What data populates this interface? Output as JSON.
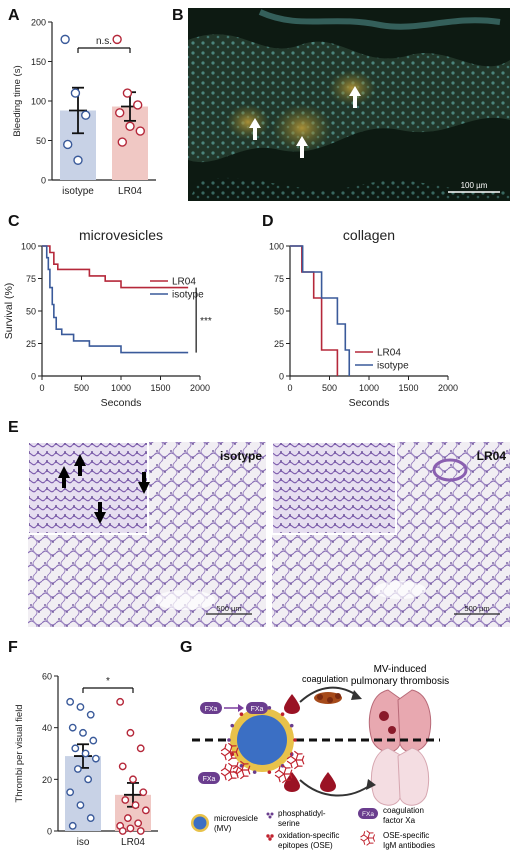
{
  "panels": {
    "A": "A",
    "B": "B",
    "C": "C",
    "D": "D",
    "E": "E",
    "F": "F",
    "G": "G"
  },
  "panelA": {
    "ylabel": "Bleeding time (s)",
    "ns": "n.s.",
    "categories": [
      "isotype",
      "LR04"
    ]
  },
  "panelB": {
    "scale": "100 µm"
  },
  "panelE": {
    "iso": "isotype",
    "lr": "LR04",
    "scale1": "500 µm",
    "scale2": "500 µm"
  },
  "panelF": {
    "ylabel": "Thrombi per visual field",
    "star": "*",
    "categories": [
      "iso",
      "LR04"
    ]
  },
  "panelG": {
    "title1": "MV-induced",
    "title2": "pulmonary thrombosis",
    "coag": "coagulation",
    "fxa": "FXa",
    "leg_mv1": "microvesicle",
    "leg_mv2": "(MV)",
    "leg_ps1": "phosphatidyl-",
    "leg_ps2": "serine",
    "leg_ose1": "oxidation-specific",
    "leg_ose2": "epitopes (OSE)",
    "leg_fxa1": "coagulation",
    "leg_fxa2": "factor Xa",
    "leg_igm1": "OSE-specific",
    "leg_igm2": "IgM antibodies"
  },
  "colors": {
    "blue": "#3a5a9a",
    "red": "#b5283a",
    "isoFill": "#c8d2e6",
    "lrFill": "#f0c8c4",
    "purple": "#6a3d8e"
  },
  "chart_data": [
    {
      "type": "bar",
      "panel": "A",
      "ylabel": "Bleeding time (s)",
      "categories": [
        "isotype",
        "LR04"
      ],
      "values": [
        88,
        93
      ],
      "ylim": [
        0,
        200
      ],
      "yticks": [
        0,
        50,
        100,
        150,
        200
      ],
      "points": {
        "isotype": [
          178,
          110,
          82,
          45,
          25
        ],
        "LR04": [
          178,
          110,
          95,
          85,
          68,
          62,
          48
        ]
      },
      "annotation": "n.s."
    },
    {
      "type": "line",
      "panel": "C",
      "title": "microvesicles",
      "xlabel": "Seconds",
      "ylabel": "Survival (%)",
      "xlim": [
        0,
        2000
      ],
      "ylim": [
        0,
        100
      ],
      "xticks": [
        0,
        500,
        1000,
        1500,
        2000
      ],
      "yticks": [
        0,
        25,
        50,
        75,
        100
      ],
      "annotation": "***",
      "series": [
        {
          "name": "LR04",
          "steps": [
            [
              0,
              100
            ],
            [
              100,
              100
            ],
            [
              100,
              95
            ],
            [
              150,
              95
            ],
            [
              150,
              86
            ],
            [
              200,
              86
            ],
            [
              200,
              82
            ],
            [
              600,
              82
            ],
            [
              600,
              77
            ],
            [
              800,
              77
            ],
            [
              800,
              73
            ],
            [
              1000,
              73
            ],
            [
              1000,
              68
            ],
            [
              1850,
              68
            ]
          ]
        },
        {
          "name": "isotype",
          "steps": [
            [
              0,
              100
            ],
            [
              60,
              100
            ],
            [
              60,
              91
            ],
            [
              80,
              91
            ],
            [
              80,
              82
            ],
            [
              100,
              82
            ],
            [
              100,
              68
            ],
            [
              130,
              68
            ],
            [
              130,
              55
            ],
            [
              150,
              55
            ],
            [
              150,
              45
            ],
            [
              180,
              45
            ],
            [
              180,
              36
            ],
            [
              250,
              36
            ],
            [
              250,
              32
            ],
            [
              400,
              32
            ],
            [
              400,
              27
            ],
            [
              600,
              27
            ],
            [
              600,
              23
            ],
            [
              1000,
              23
            ],
            [
              1000,
              18
            ],
            [
              1850,
              18
            ]
          ]
        }
      ]
    },
    {
      "type": "line",
      "panel": "D",
      "title": "collagen",
      "xlabel": "Seconds",
      "ylabel": "",
      "xlim": [
        0,
        2000
      ],
      "ylim": [
        0,
        100
      ],
      "xticks": [
        0,
        500,
        1000,
        1500,
        2000
      ],
      "yticks": [
        0,
        25,
        50,
        75,
        100
      ],
      "series": [
        {
          "name": "LR04",
          "steps": [
            [
              0,
              100
            ],
            [
              150,
              100
            ],
            [
              150,
              80
            ],
            [
              300,
              80
            ],
            [
              300,
              60
            ],
            [
              400,
              60
            ],
            [
              400,
              20
            ],
            [
              600,
              20
            ],
            [
              600,
              0
            ]
          ]
        },
        {
          "name": "isotype",
          "steps": [
            [
              0,
              100
            ],
            [
              160,
              100
            ],
            [
              160,
              80
            ],
            [
              400,
              80
            ],
            [
              400,
              60
            ],
            [
              600,
              60
            ],
            [
              600,
              40
            ],
            [
              700,
              40
            ],
            [
              700,
              20
            ],
            [
              750,
              20
            ],
            [
              750,
              0
            ]
          ]
        }
      ]
    },
    {
      "type": "bar",
      "panel": "F",
      "ylabel": "Thrombi per visual field",
      "categories": [
        "iso",
        "LR04"
      ],
      "values": [
        29,
        14
      ],
      "ylim": [
        0,
        60
      ],
      "yticks": [
        0,
        20,
        40,
        60
      ],
      "annotation": "*",
      "points": {
        "iso": [
          50,
          48,
          45,
          40,
          38,
          35,
          32,
          30,
          28,
          24,
          20,
          15,
          10,
          5,
          2
        ],
        "LR04": [
          50,
          38,
          32,
          25,
          20,
          15,
          12,
          10,
          8,
          5,
          3,
          2,
          1,
          0,
          0
        ]
      }
    }
  ]
}
